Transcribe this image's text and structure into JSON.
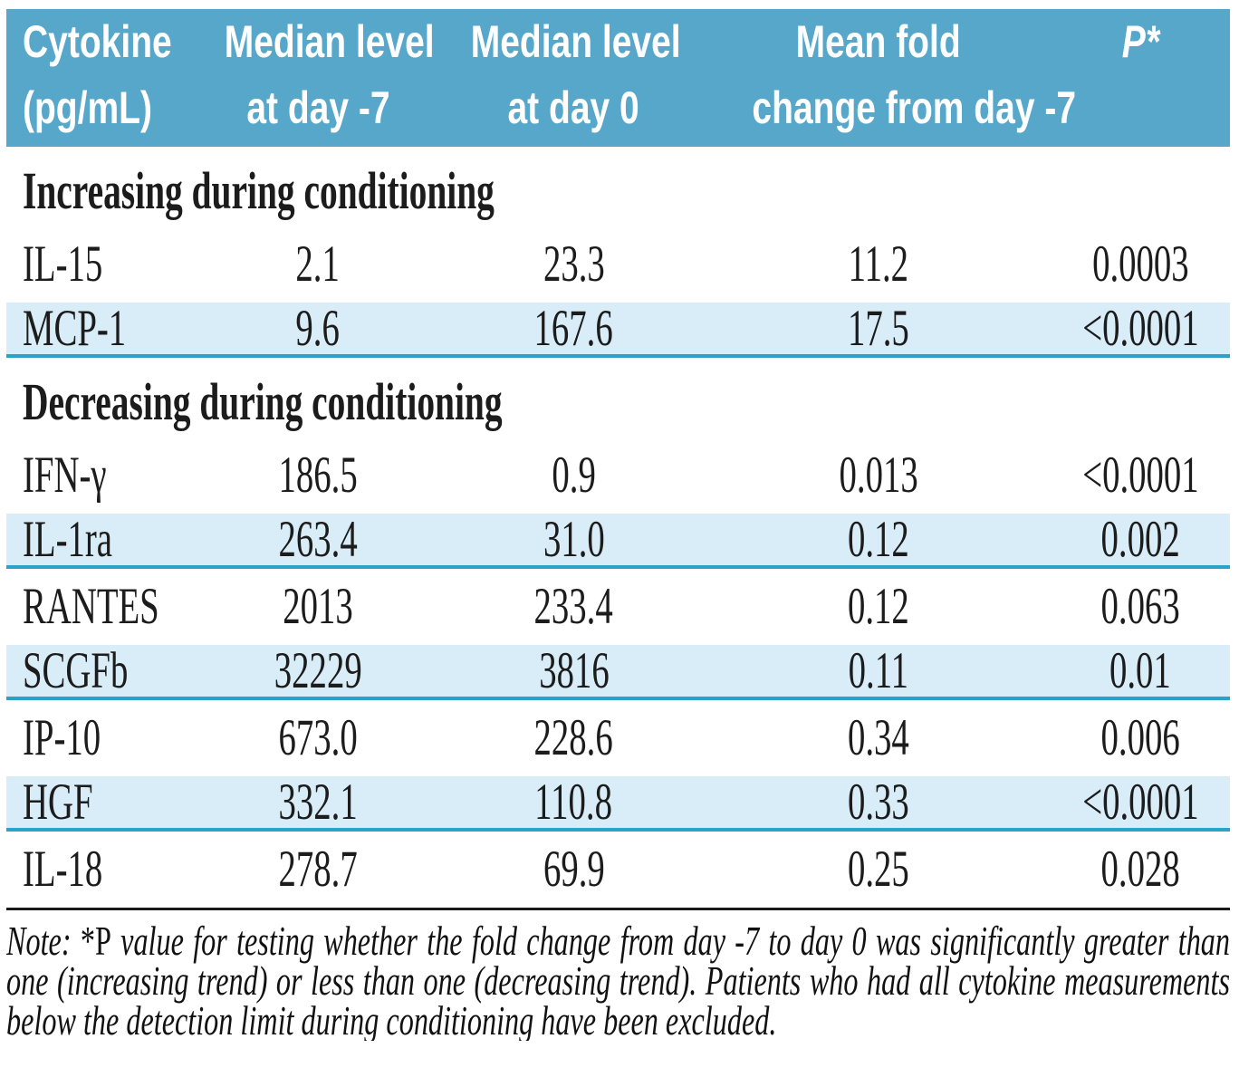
{
  "table": {
    "header": [
      {
        "line1": "Cytokine",
        "line2": "(pg/mL)"
      },
      {
        "line1": "Median level",
        "line2": "at day -7"
      },
      {
        "line1": "Median level",
        "line2": "at day 0"
      },
      {
        "line1": "Mean fold",
        "line2": "change from day -7"
      },
      {
        "line1": "P*",
        "line2": ""
      }
    ],
    "sections": [
      {
        "title": "Increasing during conditioning",
        "rows": [
          {
            "cytokine": "IL-15",
            "median_day_minus7": "2.1",
            "median_day0": "23.3",
            "mean_fold_change": "11.2",
            "p_value": "0.0003"
          },
          {
            "cytokine": "MCP-1",
            "median_day_minus7": "9.6",
            "median_day0": "167.6",
            "mean_fold_change": "17.5",
            "p_value": "<0.0001"
          }
        ]
      },
      {
        "title": "Decreasing during conditioning",
        "rows": [
          {
            "cytokine": "IFN-γ",
            "median_day_minus7": "186.5",
            "median_day0": "0.9",
            "mean_fold_change": "0.013",
            "p_value": "<0.0001"
          },
          {
            "cytokine": "IL-1ra",
            "median_day_minus7": "263.4",
            "median_day0": "31.0",
            "mean_fold_change": "0.12",
            "p_value": "0.002"
          },
          {
            "cytokine": "RANTES",
            "median_day_minus7": "2013",
            "median_day0": "233.4",
            "mean_fold_change": "0.12",
            "p_value": "0.063"
          },
          {
            "cytokine": "SCGFb",
            "median_day_minus7": "32229",
            "median_day0": "3816",
            "mean_fold_change": "0.11",
            "p_value": "0.01"
          },
          {
            "cytokine": "IP-10",
            "median_day_minus7": "673.0",
            "median_day0": "228.6",
            "mean_fold_change": "0.34",
            "p_value": "0.006"
          },
          {
            "cytokine": "HGF",
            "median_day_minus7": "332.1",
            "median_day0": "110.8",
            "mean_fold_change": "0.33",
            "p_value": "<0.0001"
          },
          {
            "cytokine": "IL-18",
            "median_day_minus7": "278.7",
            "median_day0": "69.9",
            "mean_fold_change": "0.25",
            "p_value": "0.028"
          }
        ]
      }
    ]
  },
  "note": {
    "prefix": "Note: ",
    "marker": "*P",
    "rest": " value for testing whether the fold change from day -7 to day 0 was significantly greater than one (increasing trend) or less than one (decreasing trend). Patients who had all cytokine measurements below the detection limit during conditioning have been excluded."
  },
  "colors": {
    "header_bg": "#57a7cb",
    "shaded_row_bg": "#d9edf8",
    "row_border": "#2ba3c8",
    "header_text": "#ffffff",
    "body_text": "#1c1c1c"
  }
}
